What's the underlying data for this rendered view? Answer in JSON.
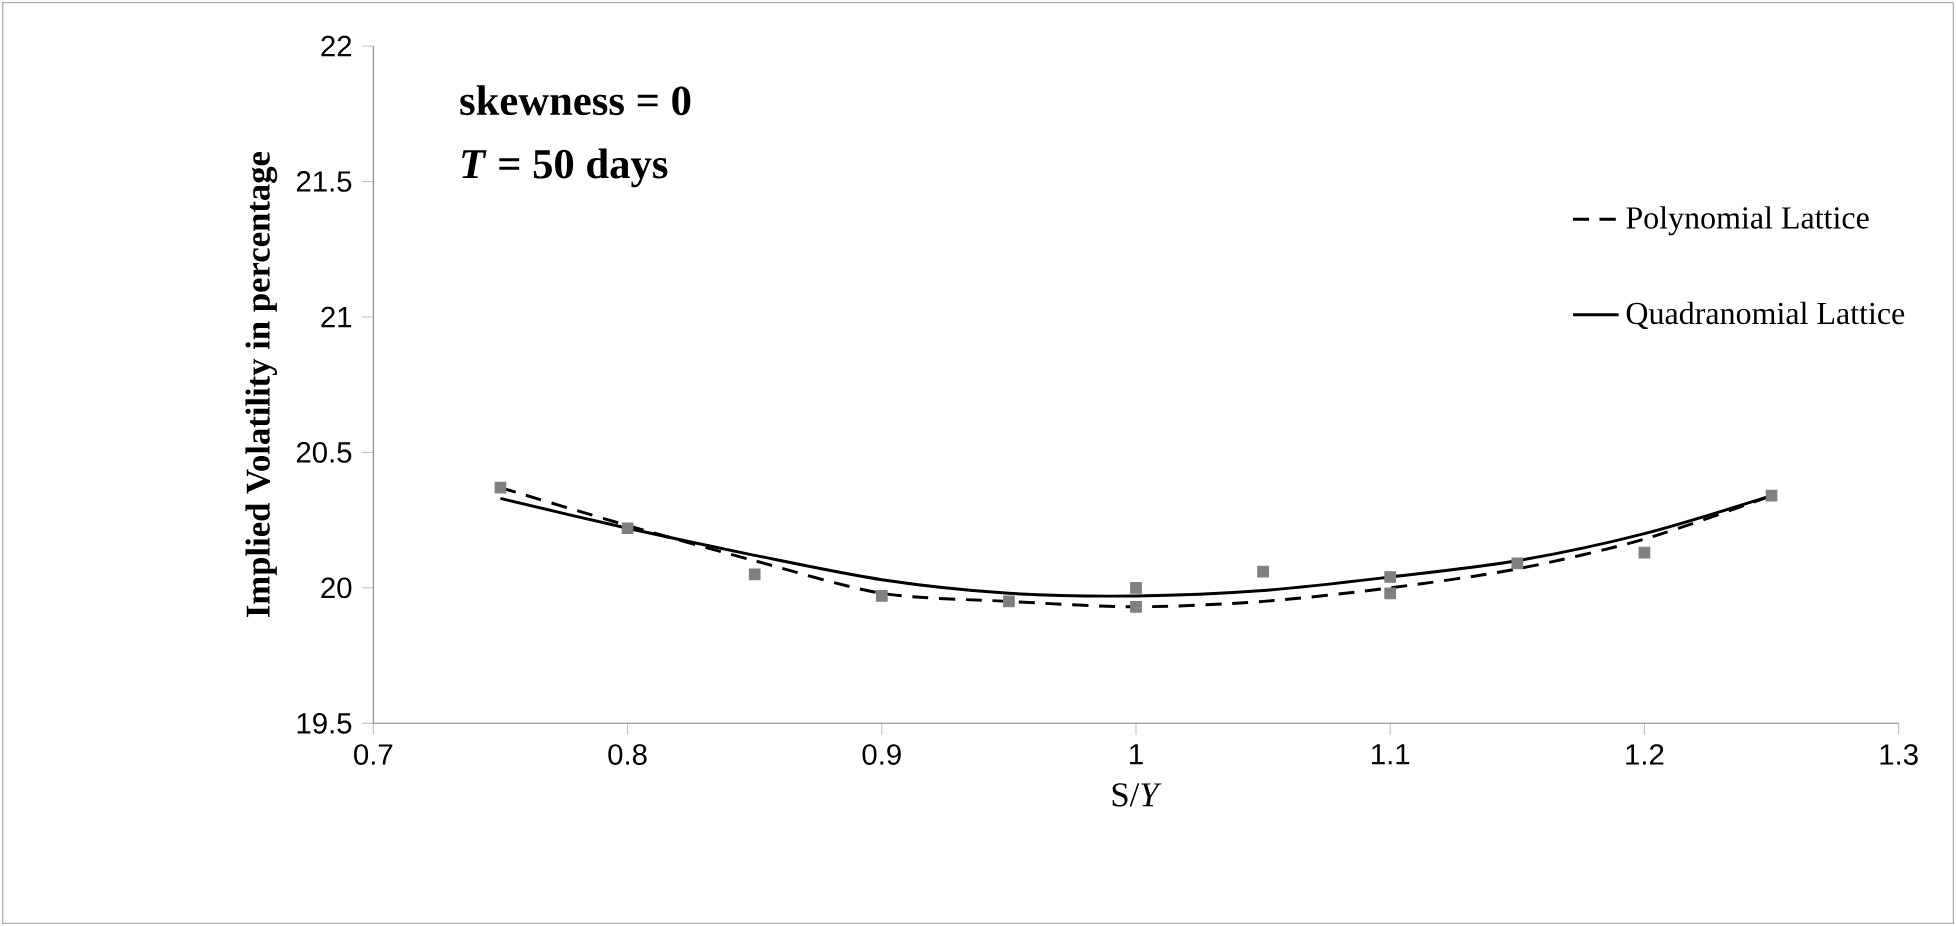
{
  "chart_data": {
    "type": "line",
    "xlabel": "S/*Y*",
    "ylabel": "Implied Volatility in percentage",
    "annotations": [
      "skewness = 0",
      "*T* = 50 days"
    ],
    "x": [
      0.75,
      0.8,
      0.85,
      0.9,
      0.95,
      1.0,
      1.05,
      1.1,
      1.15,
      1.2,
      1.25
    ],
    "series": [
      {
        "name": "Polynomial Lattice",
        "color": "#000000",
        "line_style": "dashed",
        "marker": "none",
        "values": [
          20.37,
          20.23,
          20.1,
          19.98,
          19.95,
          19.93,
          19.95,
          20.0,
          20.07,
          20.18,
          20.34
        ]
      },
      {
        "name": "Quadranomial Lattice",
        "color": "#000000",
        "line_style": "solid",
        "marker": "none",
        "values": [
          20.33,
          20.22,
          20.12,
          20.03,
          19.98,
          19.97,
          19.99,
          20.04,
          20.1,
          20.2,
          20.34
        ]
      },
      {
        "type": "scatter",
        "color": "#808080",
        "marker": "square",
        "x": [
          0.75,
          0.8,
          0.85,
          0.9,
          0.95,
          1.0,
          1.0,
          1.05,
          1.1,
          1.1,
          1.15,
          1.2,
          1.25
        ],
        "values": [
          20.37,
          20.22,
          20.05,
          19.97,
          19.95,
          20.0,
          19.93,
          20.06,
          20.04,
          19.98,
          20.09,
          20.13,
          20.34
        ]
      }
    ],
    "xlim": [
      0.7,
      1.3
    ],
    "xticks": [
      0.7,
      0.8,
      0.9,
      1,
      1.1,
      1.2,
      1.3
    ],
    "ylim": [
      19.5,
      22
    ],
    "yticks": [
      19.5,
      20,
      20.5,
      21,
      21.5,
      22
    ],
    "grid": false,
    "legend": "right"
  }
}
